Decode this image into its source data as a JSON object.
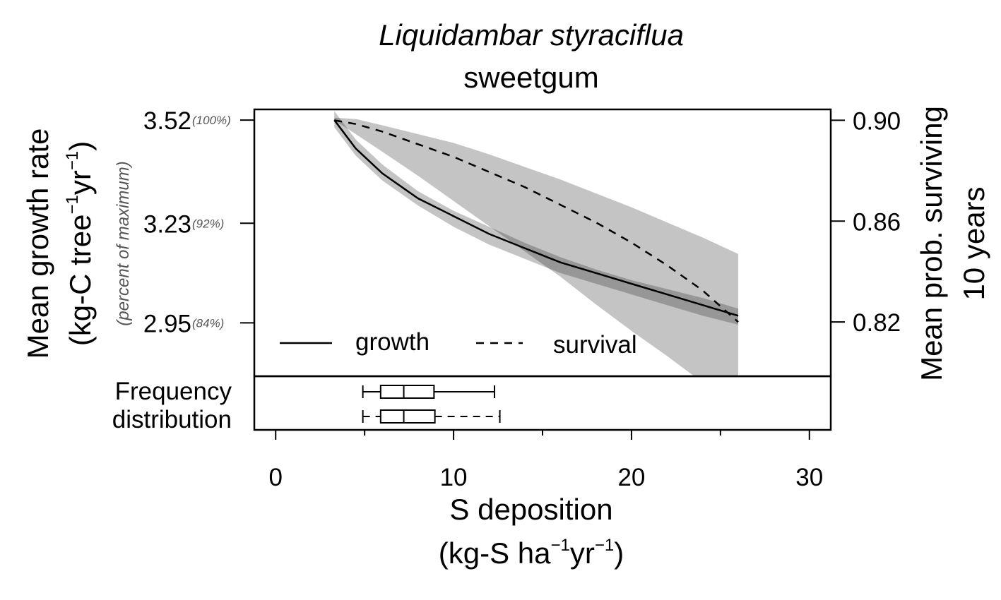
{
  "chart_data": {
    "type": "line",
    "title": "Liquidambar styraciflua",
    "subtitle": "sweetgum",
    "xlabel": {
      "line1": "S deposition",
      "line2_pre": "(kg-S ha",
      "line2_mid": "yr",
      "line2_post": ")",
      "sup": "−1"
    },
    "ylabel_left": {
      "line1": "Mean growth rate",
      "line2_pre": "(kg-C tree",
      "line2_mid": "yr",
      "line2_post": ")",
      "sup": "−1"
    },
    "ylabel_left_sub": "(percent of maximum)",
    "ylabel_right": {
      "line1": "Mean prob. surviving",
      "line2": "10 years"
    },
    "frequency_label": {
      "line1": "Frequency",
      "line2": "distribution"
    },
    "x_ticks": [
      "0",
      "10",
      "20",
      "30"
    ],
    "x_tick_values": [
      0,
      10,
      20,
      30
    ],
    "xlim": [
      -1.2,
      31.2
    ],
    "y_left_ticks": [
      {
        "value": 3.52,
        "label": "3.52",
        "pct": "(100%)"
      },
      {
        "value": 3.23,
        "label": "3.23",
        "pct": "(92%)"
      },
      {
        "value": 2.95,
        "label": "2.95",
        "pct": "(84%)"
      }
    ],
    "y_left_lim": [
      2.8,
      3.55
    ],
    "y_right_ticks": [
      {
        "value": 0.9,
        "label": "0.90"
      },
      {
        "value": 0.86,
        "label": "0.86"
      },
      {
        "value": 0.82,
        "label": "0.82"
      }
    ],
    "y_right_lim": [
      0.7985,
      0.9043
    ],
    "legend": {
      "growth": "growth",
      "survival": "survival"
    },
    "series": [
      {
        "name": "growth",
        "axis": "left",
        "style": "solid",
        "x": [
          3.3,
          4.5,
          6.0,
          8.0,
          10.0,
          12.0,
          14.0,
          16.0,
          18.0,
          20.0,
          22.0,
          24.0,
          26.0
        ],
        "y": [
          3.52,
          3.44,
          3.37,
          3.3,
          3.25,
          3.2,
          3.16,
          3.12,
          3.09,
          3.06,
          3.03,
          3.0,
          2.97
        ],
        "lower": [
          3.5,
          3.42,
          3.35,
          3.28,
          3.22,
          3.17,
          3.13,
          3.09,
          3.06,
          3.03,
          3.0,
          2.97,
          2.945
        ],
        "upper": [
          3.545,
          3.465,
          3.395,
          3.32,
          3.265,
          3.22,
          3.175,
          3.135,
          3.1,
          3.07,
          3.045,
          3.02,
          2.99
        ]
      },
      {
        "name": "survival",
        "axis": "right",
        "style": "dashed",
        "x": [
          3.3,
          4.5,
          6.0,
          8.0,
          10.0,
          12.0,
          14.0,
          16.0,
          18.0,
          20.0,
          22.0,
          24.0,
          26.0
        ],
        "y": [
          0.9,
          0.8985,
          0.8955,
          0.8905,
          0.8855,
          0.8795,
          0.8735,
          0.8665,
          0.8595,
          0.8515,
          0.8425,
          0.8325,
          0.82
        ],
        "lower": [
          0.9,
          0.8945,
          0.8875,
          0.878,
          0.868,
          0.858,
          0.848,
          0.838,
          0.827,
          0.8165,
          0.8065,
          0.796,
          0.786
        ],
        "upper": [
          0.901,
          0.9005,
          0.898,
          0.8945,
          0.891,
          0.8865,
          0.8815,
          0.8765,
          0.871,
          0.8655,
          0.8595,
          0.8535,
          0.847
        ]
      }
    ],
    "boxplots": [
      {
        "name": "growth",
        "whisker_style": "solid",
        "min": 4.9,
        "q1": 5.9,
        "median": 7.2,
        "q3": 8.9,
        "max": 12.3
      },
      {
        "name": "survival",
        "whisker_style": "dashed",
        "min": 4.9,
        "q1": 5.9,
        "median": 7.2,
        "q3": 8.95,
        "max": 12.6
      }
    ],
    "colors": {
      "band": "#bebebe",
      "band_overlap": "#8c8c8c",
      "line": "#000000",
      "pct_text": "#555555"
    }
  }
}
